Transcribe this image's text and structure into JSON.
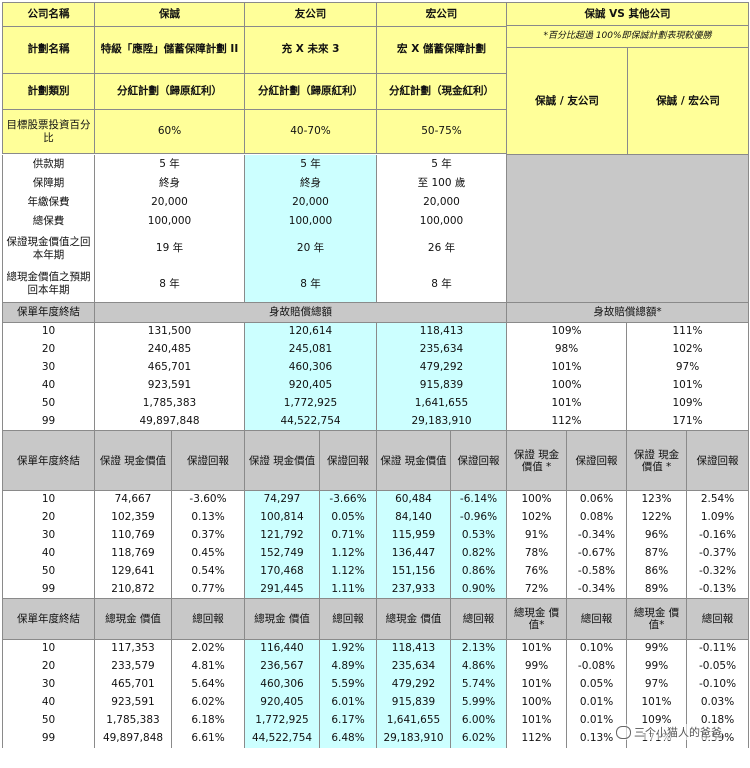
{
  "header": {
    "company_label": "公司名稱",
    "companies": [
      "保誠",
      "友公司",
      "宏公司"
    ],
    "compare_title": "保誠 VS 其他公司",
    "compare_note": "*百分比超過 100%即保誠計劃表現較優勝",
    "plan_label": "計劃名稱",
    "plans": [
      "特級「應陞」儲蓄保障計劃 II",
      "充 X 未來 3",
      "宏 X 儲蓄保障計劃"
    ],
    "type_label": "計劃類別",
    "types": [
      "分紅計劃（歸原紅利）",
      "分紅計劃（歸原紅利）",
      "分紅計劃（現金紅利）"
    ],
    "compare_cols": [
      "保誠 / 友公司",
      "保誠 / 宏公司"
    ],
    "stock_label": "目標股票投資百分比",
    "stock": [
      "60%",
      "40-70%",
      "50-75%"
    ]
  },
  "info_rows": [
    {
      "label": "供款期",
      "values": [
        "5 年",
        "5 年",
        "5 年"
      ]
    },
    {
      "label": "保障期",
      "values": [
        "終身",
        "終身",
        "至 100 歲"
      ]
    },
    {
      "label": "年繳保費",
      "values": [
        "20,000",
        "20,000",
        "20,000"
      ]
    },
    {
      "label": "總保費",
      "values": [
        "100,000",
        "100,000",
        "100,000"
      ]
    },
    {
      "label": "保證現金價值之回本年期",
      "values": [
        "19 年",
        "20 年",
        "26 年"
      ]
    },
    {
      "label": "總現金價值之預期回本年期",
      "values": [
        "8 年",
        "8 年",
        "8 年"
      ]
    }
  ],
  "death": {
    "year_label": "保單年度終結",
    "title": "身故賠償總額",
    "compare_title": "身故賠償總額*",
    "rows": [
      {
        "year": "10",
        "v": [
          "131,500",
          "120,614",
          "118,413"
        ],
        "cmp": [
          "109%",
          "111%"
        ]
      },
      {
        "year": "20",
        "v": [
          "240,485",
          "245,081",
          "235,634"
        ],
        "cmp": [
          "98%",
          "102%"
        ]
      },
      {
        "year": "30",
        "v": [
          "465,701",
          "460,306",
          "479,292"
        ],
        "cmp": [
          "101%",
          "97%"
        ]
      },
      {
        "year": "40",
        "v": [
          "923,591",
          "920,405",
          "915,839"
        ],
        "cmp": [
          "100%",
          "101%"
        ]
      },
      {
        "year": "50",
        "v": [
          "1,785,383",
          "1,772,925",
          "1,641,655"
        ],
        "cmp": [
          "101%",
          "109%"
        ]
      },
      {
        "year": "99",
        "v": [
          "49,897,848",
          "44,522,754",
          "29,183,910"
        ],
        "cmp": [
          "112%",
          "171%"
        ]
      }
    ]
  },
  "guaranteed": {
    "year_label": "保單年度終結",
    "value_label": "保證 現金價值",
    "return_label": "保證回報",
    "cmp_value_label": "保證 現金價值 *",
    "rows": [
      {
        "year": "10",
        "c": [
          "74,667",
          "-3.60%",
          "74,297",
          "-3.66%",
          "60,484",
          "-6.14%",
          "100%",
          "0.06%",
          "123%",
          "2.54%"
        ]
      },
      {
        "year": "20",
        "c": [
          "102,359",
          "0.13%",
          "100,814",
          "0.05%",
          "84,140",
          "-0.96%",
          "102%",
          "0.08%",
          "122%",
          "1.09%"
        ]
      },
      {
        "year": "30",
        "c": [
          "110,769",
          "0.37%",
          "121,792",
          "0.71%",
          "115,959",
          "0.53%",
          "91%",
          "-0.34%",
          "96%",
          "-0.16%"
        ]
      },
      {
        "year": "40",
        "c": [
          "118,769",
          "0.45%",
          "152,749",
          "1.12%",
          "136,447",
          "0.82%",
          "78%",
          "-0.67%",
          "87%",
          "-0.37%"
        ]
      },
      {
        "year": "50",
        "c": [
          "129,641",
          "0.54%",
          "170,468",
          "1.12%",
          "151,156",
          "0.86%",
          "76%",
          "-0.58%",
          "86%",
          "-0.32%"
        ]
      },
      {
        "year": "99",
        "c": [
          "210,872",
          "0.77%",
          "291,445",
          "1.11%",
          "237,933",
          "0.90%",
          "72%",
          "-0.34%",
          "89%",
          "-0.13%"
        ]
      }
    ]
  },
  "total": {
    "year_label": "保單年度終結",
    "value_label": "總現金 價值",
    "return_label": "總回報",
    "cmp_value_label": "總現金 價值*",
    "rows": [
      {
        "year": "10",
        "c": [
          "117,353",
          "2.02%",
          "116,440",
          "1.92%",
          "118,413",
          "2.13%",
          "101%",
          "0.10%",
          "99%",
          "-0.11%"
        ]
      },
      {
        "year": "20",
        "c": [
          "233,579",
          "4.81%",
          "236,567",
          "4.89%",
          "235,634",
          "4.86%",
          "99%",
          "-0.08%",
          "99%",
          "-0.05%"
        ]
      },
      {
        "year": "30",
        "c": [
          "465,701",
          "5.64%",
          "460,306",
          "5.59%",
          "479,292",
          "5.74%",
          "101%",
          "0.05%",
          "97%",
          "-0.10%"
        ]
      },
      {
        "year": "40",
        "c": [
          "923,591",
          "6.02%",
          "920,405",
          "6.01%",
          "915,839",
          "5.99%",
          "100%",
          "0.01%",
          "101%",
          "0.03%"
        ]
      },
      {
        "year": "50",
        "c": [
          "1,785,383",
          "6.18%",
          "1,772,925",
          "6.17%",
          "1,641,655",
          "6.00%",
          "101%",
          "0.01%",
          "109%",
          "0.18%"
        ]
      },
      {
        "year": "99",
        "c": [
          "49,897,848",
          "6.61%",
          "44,522,754",
          "6.48%",
          "29,183,910",
          "6.02%",
          "112%",
          "0.13%",
          "171%",
          "0.59%"
        ]
      }
    ]
  },
  "watermark": "三个小猫人的爸爸"
}
